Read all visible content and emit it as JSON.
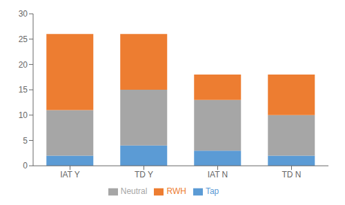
{
  "chart_data": {
    "type": "bar",
    "stacked": true,
    "categories": [
      "IAT Y",
      "TD Y",
      "IAT N",
      "TD N"
    ],
    "series": [
      {
        "name": "Tap",
        "color": "#5b9bd5",
        "values": [
          2,
          4,
          3,
          2
        ]
      },
      {
        "name": "Neutral",
        "color": "#a6a6a6",
        "values": [
          9,
          11,
          10,
          8
        ]
      },
      {
        "name": "RWH",
        "color": "#ed7d31",
        "values": [
          15,
          11,
          5,
          8
        ]
      }
    ],
    "ylim": [
      0,
      30
    ],
    "yticks": [
      0,
      5,
      10,
      15,
      20,
      25,
      30
    ],
    "grid": false,
    "legend": "bottom"
  }
}
